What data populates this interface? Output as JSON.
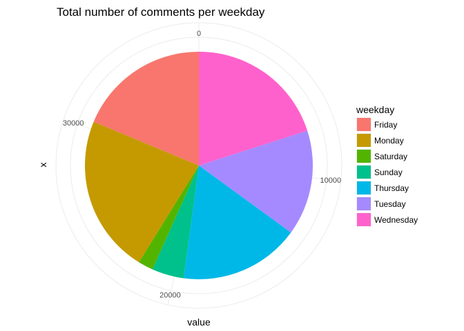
{
  "chart_data": {
    "type": "pie",
    "title": "Total number of comments per weekday",
    "xlabel": "value",
    "ylabel": "x",
    "legend_title": "weekday",
    "legend_position": "right",
    "grid": true,
    "theta_ticks": [
      {
        "value": 0,
        "label": "0"
      },
      {
        "value": 10000,
        "label": "10000"
      },
      {
        "value": 20000,
        "label": "20000"
      },
      {
        "value": 30000,
        "label": "30000"
      }
    ],
    "slices": [
      {
        "name": "Wednesday",
        "value": 7500,
        "color": "#FF61CC"
      },
      {
        "name": "Tuesday",
        "value": 5600,
        "color": "#A58AFF"
      },
      {
        "name": "Thursday",
        "value": 6400,
        "color": "#00B8E7"
      },
      {
        "name": "Sunday",
        "value": 1700,
        "color": "#00C08B"
      },
      {
        "name": "Saturday",
        "value": 800,
        "color": "#53B400"
      },
      {
        "name": "Monday",
        "value": 8400,
        "color": "#C49A00"
      },
      {
        "name": "Friday",
        "value": 7000,
        "color": "#F8766D"
      }
    ],
    "legend": [
      {
        "name": "Friday",
        "color": "#F8766D"
      },
      {
        "name": "Monday",
        "color": "#C49A00"
      },
      {
        "name": "Saturday",
        "color": "#53B400"
      },
      {
        "name": "Sunday",
        "color": "#00C08B"
      },
      {
        "name": "Thursday",
        "color": "#00B8E7"
      },
      {
        "name": "Tuesday",
        "color": "#A58AFF"
      },
      {
        "name": "Wednesday",
        "color": "#FF61CC"
      }
    ]
  }
}
